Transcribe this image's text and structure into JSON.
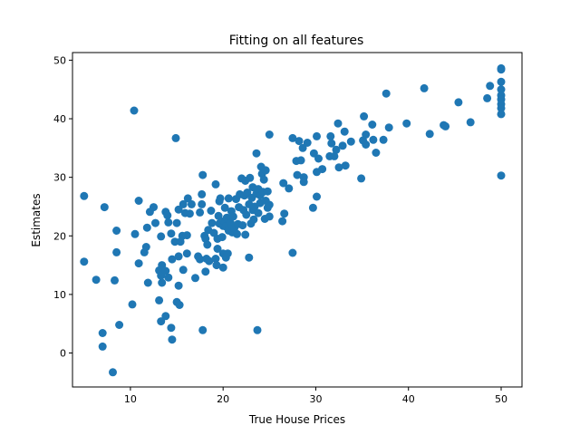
{
  "chart_data": {
    "type": "scatter",
    "title": "Fitting on all features",
    "xlabel": "True House Prices",
    "ylabel": "Estimates",
    "xlim": [
      3.75,
      52.25
    ],
    "ylim": [
      -5.8,
      51.3
    ],
    "xticks": [
      10,
      20,
      30,
      40,
      50
    ],
    "xtick_labels": [
      "10",
      "20",
      "30",
      "40",
      "50"
    ],
    "yticks": [
      0,
      10,
      20,
      30,
      40,
      50
    ],
    "ytick_labels": [
      "0",
      "10",
      "20",
      "30",
      "40",
      "50"
    ],
    "grid": false,
    "legend": "none",
    "marker_color": "#1f77b4",
    "series": [
      {
        "points": [
          [
            5.0,
            26.8
          ],
          [
            5.0,
            15.6
          ],
          [
            6.3,
            12.5
          ],
          [
            7.0,
            3.4
          ],
          [
            7.0,
            1.1
          ],
          [
            7.2,
            24.9
          ],
          [
            8.1,
            -3.3
          ],
          [
            8.3,
            12.4
          ],
          [
            8.5,
            17.2
          ],
          [
            8.5,
            20.9
          ],
          [
            8.8,
            4.8
          ],
          [
            10.2,
            8.3
          ],
          [
            10.4,
            41.4
          ],
          [
            10.5,
            20.3
          ],
          [
            10.9,
            26.0
          ],
          [
            10.9,
            15.3
          ],
          [
            11.5,
            17.2
          ],
          [
            11.7,
            18.1
          ],
          [
            11.8,
            21.4
          ],
          [
            11.9,
            12.0
          ],
          [
            12.1,
            24.1
          ],
          [
            12.5,
            24.9
          ],
          [
            12.7,
            22.2
          ],
          [
            13.1,
            9.0
          ],
          [
            13.1,
            14.1
          ],
          [
            13.3,
            5.4
          ],
          [
            13.3,
            13.2
          ],
          [
            13.3,
            19.9
          ],
          [
            13.4,
            12.0
          ],
          [
            13.4,
            15.0
          ],
          [
            13.8,
            6.3
          ],
          [
            13.8,
            14.0
          ],
          [
            13.8,
            24.1
          ],
          [
            14.0,
            23.5
          ],
          [
            14.1,
            12.9
          ],
          [
            14.1,
            22.3
          ],
          [
            14.4,
            20.4
          ],
          [
            14.4,
            4.3
          ],
          [
            14.5,
            2.3
          ],
          [
            14.5,
            16.0
          ],
          [
            14.8,
            19.0
          ],
          [
            14.9,
            36.7
          ],
          [
            15.0,
            8.7
          ],
          [
            15.0,
            22.2
          ],
          [
            15.2,
            11.5
          ],
          [
            15.2,
            16.5
          ],
          [
            15.2,
            24.5
          ],
          [
            15.3,
            8.2
          ],
          [
            15.4,
            19.0
          ],
          [
            15.6,
            20.0
          ],
          [
            15.7,
            14.2
          ],
          [
            15.7,
            25.4
          ],
          [
            15.9,
            23.9
          ],
          [
            16.1,
            17.0
          ],
          [
            16.1,
            20.1
          ],
          [
            16.2,
            26.4
          ],
          [
            16.4,
            23.8
          ],
          [
            16.6,
            25.4
          ],
          [
            17.0,
            12.8
          ],
          [
            17.3,
            16.5
          ],
          [
            17.5,
            16.0
          ],
          [
            17.5,
            24.0
          ],
          [
            17.7,
            25.4
          ],
          [
            17.7,
            27.1
          ],
          [
            17.8,
            3.9
          ],
          [
            17.8,
            30.4
          ],
          [
            18.0,
            20.0
          ],
          [
            18.1,
            19.5
          ],
          [
            18.1,
            13.9
          ],
          [
            18.2,
            16.1
          ],
          [
            18.3,
            18.5
          ],
          [
            18.4,
            21.0
          ],
          [
            18.5,
            15.7
          ],
          [
            18.7,
            24.3
          ],
          [
            18.8,
            22.2
          ],
          [
            19.0,
            20.5
          ],
          [
            19.2,
            16.1
          ],
          [
            19.2,
            28.8
          ],
          [
            19.3,
            15.0
          ],
          [
            19.4,
            17.8
          ],
          [
            19.4,
            19.5
          ],
          [
            19.5,
            23.4
          ],
          [
            19.6,
            22.1
          ],
          [
            19.6,
            25.9
          ],
          [
            19.7,
            26.4
          ],
          [
            19.9,
            19.8
          ],
          [
            20.0,
            17.0
          ],
          [
            20.0,
            21.7
          ],
          [
            20.0,
            14.6
          ],
          [
            20.1,
            22.5
          ],
          [
            20.2,
            24.8
          ],
          [
            20.3,
            16.3
          ],
          [
            20.3,
            21.6
          ],
          [
            20.4,
            23.1
          ],
          [
            20.5,
            17.0
          ],
          [
            20.6,
            20.9
          ],
          [
            20.6,
            26.4
          ],
          [
            20.8,
            22.2
          ],
          [
            20.9,
            24.2
          ],
          [
            21.0,
            20.6
          ],
          [
            21.1,
            23.3
          ],
          [
            21.2,
            21.3
          ],
          [
            21.4,
            26.3
          ],
          [
            21.5,
            20.3
          ],
          [
            21.6,
            22.0
          ],
          [
            21.7,
            24.9
          ],
          [
            21.8,
            27.1
          ],
          [
            22.0,
            29.8
          ],
          [
            22.1,
            21.8
          ],
          [
            22.2,
            24.4
          ],
          [
            22.3,
            26.9
          ],
          [
            22.4,
            20.2
          ],
          [
            22.4,
            29.4
          ],
          [
            22.5,
            23.6
          ],
          [
            22.6,
            27.4
          ],
          [
            22.8,
            16.3
          ],
          [
            22.8,
            25.4
          ],
          [
            22.9,
            29.9
          ],
          [
            23.0,
            22.1
          ],
          [
            23.1,
            26.5
          ],
          [
            23.2,
            24.4
          ],
          [
            23.2,
            28.3
          ],
          [
            23.3,
            22.8
          ],
          [
            23.4,
            25.0
          ],
          [
            23.6,
            34.1
          ],
          [
            23.6,
            27.2
          ],
          [
            23.7,
            3.9
          ],
          [
            23.8,
            28.0
          ],
          [
            23.8,
            23.9
          ],
          [
            24.0,
            25.6
          ],
          [
            24.0,
            26.9
          ],
          [
            24.1,
            31.8
          ],
          [
            24.2,
            30.6
          ],
          [
            24.3,
            27.5
          ],
          [
            24.4,
            29.6
          ],
          [
            24.5,
            22.9
          ],
          [
            24.6,
            31.2
          ],
          [
            24.6,
            26.0
          ],
          [
            24.8,
            24.8
          ],
          [
            24.8,
            27.6
          ],
          [
            25.0,
            23.3
          ],
          [
            25.0,
            25.3
          ],
          [
            25.0,
            37.3
          ],
          [
            26.4,
            22.5
          ],
          [
            26.5,
            29.0
          ],
          [
            26.6,
            23.8
          ],
          [
            27.1,
            28.1
          ],
          [
            27.5,
            36.7
          ],
          [
            27.5,
            17.1
          ],
          [
            27.9,
            32.8
          ],
          [
            28.0,
            30.4
          ],
          [
            28.2,
            36.2
          ],
          [
            28.4,
            32.9
          ],
          [
            28.6,
            35.0
          ],
          [
            28.7,
            29.2
          ],
          [
            28.7,
            30.0
          ],
          [
            29.1,
            35.9
          ],
          [
            29.7,
            24.8
          ],
          [
            29.8,
            34.1
          ],
          [
            30.1,
            26.7
          ],
          [
            30.1,
            37.0
          ],
          [
            30.1,
            30.9
          ],
          [
            30.3,
            33.2
          ],
          [
            30.7,
            31.4
          ],
          [
            31.5,
            33.6
          ],
          [
            31.6,
            37.0
          ],
          [
            31.7,
            35.8
          ],
          [
            32.0,
            33.6
          ],
          [
            32.2,
            34.7
          ],
          [
            32.4,
            39.2
          ],
          [
            32.5,
            31.7
          ],
          [
            32.9,
            35.4
          ],
          [
            33.1,
            37.8
          ],
          [
            33.2,
            32.0
          ],
          [
            33.8,
            36.1
          ],
          [
            34.9,
            29.8
          ],
          [
            35.1,
            36.3
          ],
          [
            35.2,
            40.4
          ],
          [
            35.4,
            37.3
          ],
          [
            35.4,
            35.6
          ],
          [
            36.1,
            39.0
          ],
          [
            36.2,
            36.4
          ],
          [
            36.5,
            34.2
          ],
          [
            37.3,
            36.4
          ],
          [
            37.6,
            44.3
          ],
          [
            37.9,
            38.5
          ],
          [
            39.8,
            39.2
          ],
          [
            41.7,
            45.2
          ],
          [
            42.3,
            37.4
          ],
          [
            43.8,
            38.9
          ],
          [
            44.0,
            38.7
          ],
          [
            45.4,
            42.8
          ],
          [
            46.7,
            39.4
          ],
          [
            48.5,
            43.5
          ],
          [
            48.8,
            45.6
          ],
          [
            50.0,
            48.6
          ],
          [
            50.0,
            48.4
          ],
          [
            50.0,
            46.3
          ],
          [
            50.0,
            45.0
          ],
          [
            50.0,
            44.0
          ],
          [
            50.0,
            43.3
          ],
          [
            50.0,
            42.5
          ],
          [
            50.0,
            41.8
          ],
          [
            50.0,
            40.8
          ],
          [
            50.0,
            30.3
          ]
        ]
      }
    ]
  }
}
